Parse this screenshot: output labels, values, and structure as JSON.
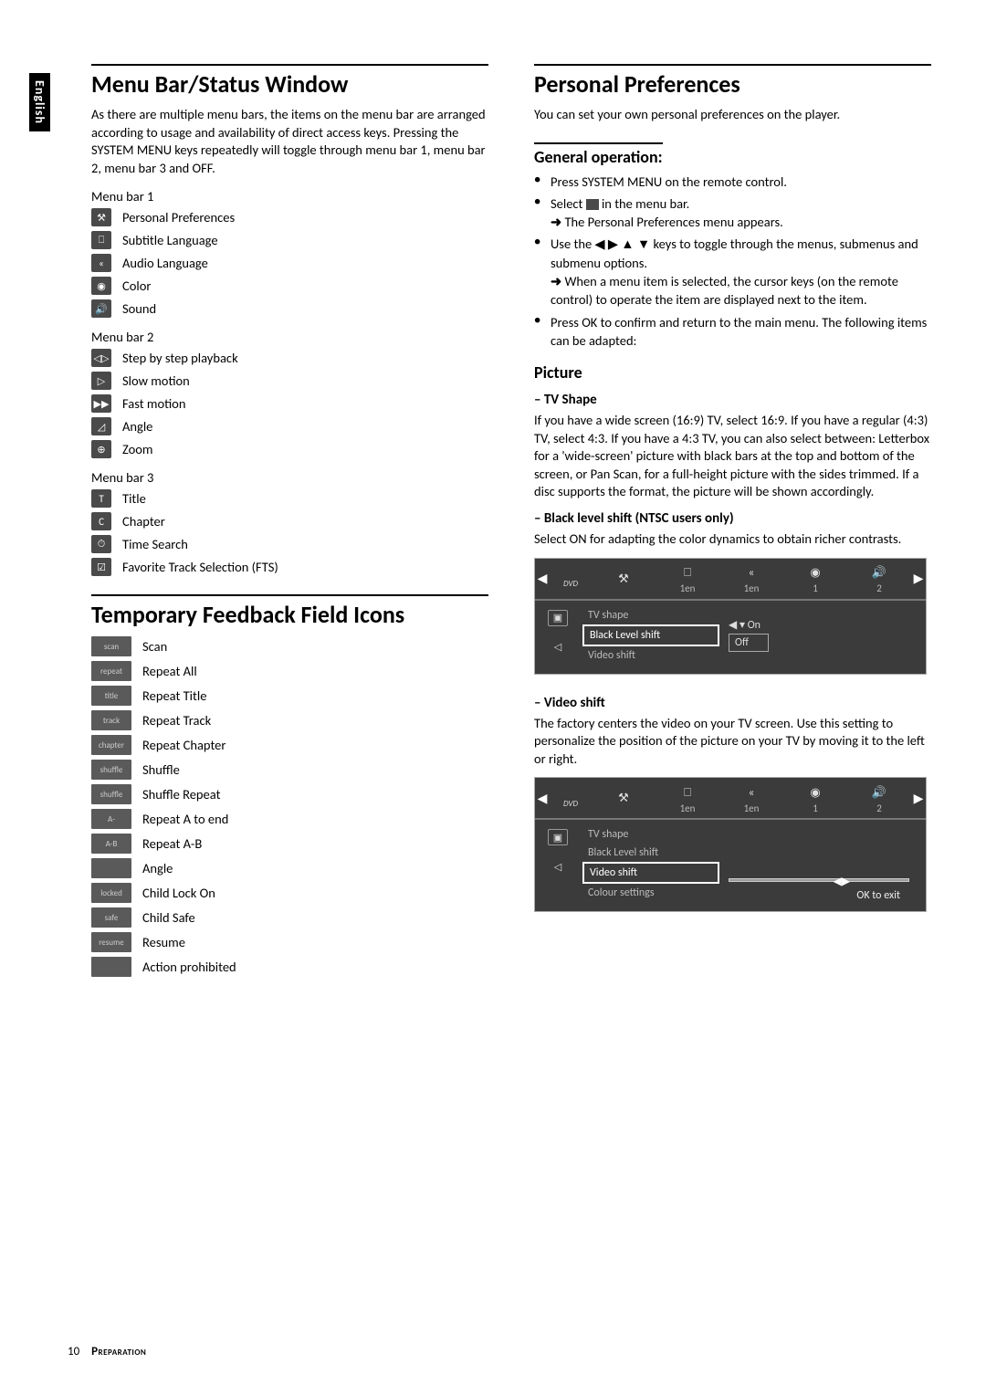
{
  "sideTab": "English",
  "left": {
    "h1": "Menu Bar/Status Window",
    "intro": "As there are multiple menu bars, the items on the menu bar are arranged according to usage and availability of direct access keys. Pressing the SYSTEM MENU keys repeatedly will toggle through menu bar 1, menu bar 2, menu bar 3 and OFF.",
    "menubar1Label": "Menu bar 1",
    "menubar1": [
      {
        "icon": "⚒",
        "label": "Personal Preferences"
      },
      {
        "icon": "⎕",
        "label": "Subtitle Language"
      },
      {
        "icon": "«",
        "label": "Audio Language"
      },
      {
        "icon": "◉",
        "label": "Color"
      },
      {
        "icon": "🔊",
        "label": "Sound"
      }
    ],
    "menubar2Label": "Menu bar 2",
    "menubar2": [
      {
        "icon": "◁▷",
        "label": "Step by step playback"
      },
      {
        "icon": "▷",
        "label": "Slow motion"
      },
      {
        "icon": "▶▶",
        "label": "Fast motion"
      },
      {
        "icon": "◿",
        "label": "Angle"
      },
      {
        "icon": "⊕",
        "label": "Zoom"
      }
    ],
    "menubar3Label": "Menu bar 3",
    "menubar3": [
      {
        "icon": "T",
        "label": "Title"
      },
      {
        "icon": "C",
        "label": "Chapter"
      },
      {
        "icon": "⏱",
        "label": "Time Search"
      },
      {
        "icon": "☑",
        "label": "Favorite Track Selection (FTS)"
      }
    ],
    "h1b": "Temporary Feedback Field Icons",
    "feedback": [
      {
        "icon": "scan",
        "label": "Scan"
      },
      {
        "icon": "repeat",
        "label": "Repeat All"
      },
      {
        "icon": "title",
        "label": "Repeat Title"
      },
      {
        "icon": "track",
        "label": "Repeat Track"
      },
      {
        "icon": "chapter",
        "label": "Repeat Chapter"
      },
      {
        "icon": "shuffle",
        "label": "Shuffle"
      },
      {
        "icon": "shuffle",
        "label": "Shuffle Repeat"
      },
      {
        "icon": "A-",
        "label": "Repeat A to end"
      },
      {
        "icon": "A-B",
        "label": "Repeat A-B"
      },
      {
        "icon": " ",
        "label": "Angle"
      },
      {
        "icon": "locked",
        "label": "Child Lock On"
      },
      {
        "icon": "safe",
        "label": "Child Safe"
      },
      {
        "icon": "resume",
        "label": "Resume"
      },
      {
        "icon": " ",
        "label": "Action prohibited"
      }
    ]
  },
  "right": {
    "h1": "Personal Preferences",
    "intro": "You can set your own personal preferences on the player.",
    "genOpHead": "General operation:",
    "bullets1": "Press SYSTEM MENU on the remote control.",
    "bullets2a": "Select ",
    "bullets2b": " in the menu bar.",
    "arrow2": "The Personal Preferences menu appears.",
    "bullets3": "Use the ◀ ▶ ▲ ▼ keys to toggle through the menus, submenus and submenu options.",
    "arrow3": "When a menu item is selected, the cursor keys (on the remote control) to operate the item are displayed next to the item.",
    "bullets4": "Press OK to confirm and return to the main menu. The following items can be adapted:",
    "pictureHead": "Picture",
    "tvShapeHead": "–  TV Shape",
    "tvShapeBody": "If you have a wide screen (16:9) TV, select 16:9. If you have a regular (4:3) TV, select 4:3. If you have a 4:3 TV, you can also select between: Letterbox for a 'wide-screen' picture with black bars at the top and bottom of the screen, or Pan Scan, for a full-height picture with the sides trimmed. If a disc supports the format, the picture will be shown accordingly.",
    "blackHead": "–  Black level shift (NTSC users only)",
    "blackBody": "Select ON for adapting the color dynamics to obtain richer contrasts.",
    "osd1": {
      "topIcons": [
        "⚒",
        "⎕",
        "«",
        "◉",
        "🔊"
      ],
      "topLabels": [
        "",
        "1en",
        "1en",
        "1",
        "2"
      ],
      "leftIcons": [
        "▣",
        "◁"
      ],
      "options": [
        "TV shape",
        "Black Level shift",
        "Video shift"
      ],
      "selectedIndex": 1,
      "rightOn": "On",
      "rightOff": "Off"
    },
    "videoHead": "–  Video shift",
    "videoBody": "The factory centers the video on your TV screen. Use this setting to personalize the position of the picture on your TV by moving it to the left or right.",
    "osd2": {
      "topIcons": [
        "⚒",
        "⎕",
        "«",
        "◉",
        "🔊"
      ],
      "topLabels": [
        "",
        "1en",
        "1en",
        "1",
        "2"
      ],
      "leftIcons": [
        "▣",
        "◁"
      ],
      "options": [
        "TV shape",
        "Black Level shift",
        "Video shift",
        "Colour settings"
      ],
      "selectedIndex": 2,
      "okExit": "OK to exit"
    }
  },
  "footer": {
    "page": "10",
    "label": "Preparation"
  }
}
